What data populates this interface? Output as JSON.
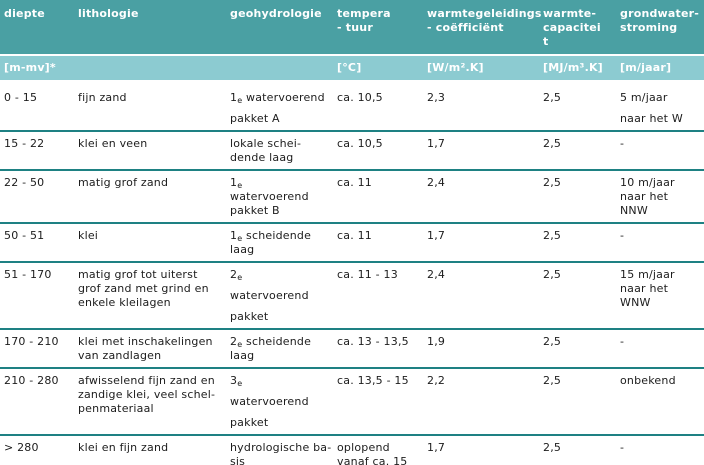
{
  "colors": {
    "header_bg": "#4AA0A3",
    "unit_bg": "#8CCBD1",
    "divider": "#1E8183",
    "text": "#1C1C1C",
    "header_text": "#FFFFFF"
  },
  "table": {
    "header": {
      "columns": [
        {
          "title": [
            "diepte"
          ],
          "unit": "[m-mv]*"
        },
        {
          "title": [
            "lithologie"
          ],
          "unit": ""
        },
        {
          "title": [
            "geohydrologie"
          ],
          "unit": ""
        },
        {
          "title": [
            "tempera",
            "- tuur"
          ],
          "unit": "[°C]"
        },
        {
          "title": [
            "warmtegeleidings",
            "- coëfficiënt"
          ],
          "unit": "[W/m².K]"
        },
        {
          "title": [
            "warmte-",
            "capacitei",
            "t"
          ],
          "unit": "[MJ/m³.K]"
        },
        {
          "title": [
            "grondwater-",
            "stroming"
          ],
          "unit": "[m/jaar]"
        }
      ]
    },
    "rows": [
      {
        "cells": [
          {
            "lines": [
              "0 - 15"
            ]
          },
          {
            "lines": [
              "fijn zand"
            ]
          },
          {
            "lines": [
              "1~e~ watervoerend",
              "pakket A"
            ],
            "spaced": true
          },
          {
            "lines": [
              "ca. 10,5"
            ]
          },
          {
            "lines": [
              "2,3"
            ]
          },
          {
            "lines": [
              "2,5"
            ]
          },
          {
            "lines": [
              "5 m/jaar",
              "naar het W"
            ],
            "spaced": true
          }
        ]
      },
      {
        "cells": [
          {
            "lines": [
              "15 - 22"
            ]
          },
          {
            "lines": [
              "klei en veen"
            ]
          },
          {
            "lines": [
              "lokale schei-",
              "dende laag"
            ]
          },
          {
            "lines": [
              "ca. 10,5"
            ]
          },
          {
            "lines": [
              "1,7"
            ]
          },
          {
            "lines": [
              "2,5"
            ]
          },
          {
            "lines": [
              "-"
            ]
          }
        ]
      },
      {
        "cells": [
          {
            "lines": [
              "22 - 50"
            ]
          },
          {
            "lines": [
              "matig grof zand"
            ]
          },
          {
            "lines": [
              "1~e~",
              "watervoerend",
              "pakket B"
            ]
          },
          {
            "lines": [
              "ca. 11"
            ]
          },
          {
            "lines": [
              "2,4"
            ]
          },
          {
            "lines": [
              "2,5"
            ]
          },
          {
            "lines": [
              "10 m/jaar",
              "naar het",
              "NNW"
            ]
          }
        ]
      },
      {
        "cells": [
          {
            "lines": [
              "50 - 51"
            ]
          },
          {
            "lines": [
              "klei"
            ]
          },
          {
            "lines": [
              "1~e~ scheidende",
              "laag"
            ]
          },
          {
            "lines": [
              "ca. 11"
            ]
          },
          {
            "lines": [
              "1,7"
            ]
          },
          {
            "lines": [
              "2,5"
            ]
          },
          {
            "lines": [
              "-"
            ]
          }
        ]
      },
      {
        "cells": [
          {
            "lines": [
              "51 - 170"
            ]
          },
          {
            "lines": [
              "matig grof tot uiterst",
              "grof zand met grind en",
              "enkele kleilagen"
            ]
          },
          {
            "lines": [
              "2~e~",
              "watervoerend",
              "pakket"
            ],
            "spaced": true
          },
          {
            "lines": [
              "ca. 11 - 13"
            ]
          },
          {
            "lines": [
              "2,4"
            ]
          },
          {
            "lines": [
              "2,5"
            ]
          },
          {
            "lines": [
              "15 m/jaar",
              "naar het",
              "WNW"
            ]
          }
        ]
      },
      {
        "cells": [
          {
            "lines": [
              "170 - 210"
            ]
          },
          {
            "lines": [
              "klei met inschakelingen",
              "van zandlagen"
            ]
          },
          {
            "lines": [
              "2~e~ scheidende",
              "laag"
            ]
          },
          {
            "lines": [
              "ca. 13 - 13,5"
            ]
          },
          {
            "lines": [
              "1,9"
            ]
          },
          {
            "lines": [
              "2,5"
            ]
          },
          {
            "lines": [
              "-"
            ]
          }
        ]
      },
      {
        "cells": [
          {
            "lines": [
              "210 - 280"
            ]
          },
          {
            "lines": [
              "afwisselend fijn zand en",
              "zandige klei, veel schel-",
              "penmateriaal"
            ]
          },
          {
            "lines": [
              "3~e~",
              "watervoerend",
              "pakket"
            ],
            "spaced": true
          },
          {
            "lines": [
              "ca. 13,5 - 15"
            ]
          },
          {
            "lines": [
              "2,2"
            ]
          },
          {
            "lines": [
              "2,5"
            ]
          },
          {
            "lines": [
              "onbekend"
            ]
          }
        ]
      },
      {
        "cells": [
          {
            "lines": [
              "> 280"
            ]
          },
          {
            "lines": [
              "klei en fijn zand"
            ]
          },
          {
            "lines": [
              "hydrologische ba-",
              "sis"
            ]
          },
          {
            "lines": [
              "oplopend",
              "vanaf ca. 15"
            ]
          },
          {
            "lines": [
              "1,7"
            ]
          },
          {
            "lines": [
              "2,5"
            ]
          },
          {
            "lines": [
              "-"
            ]
          }
        ]
      }
    ]
  }
}
